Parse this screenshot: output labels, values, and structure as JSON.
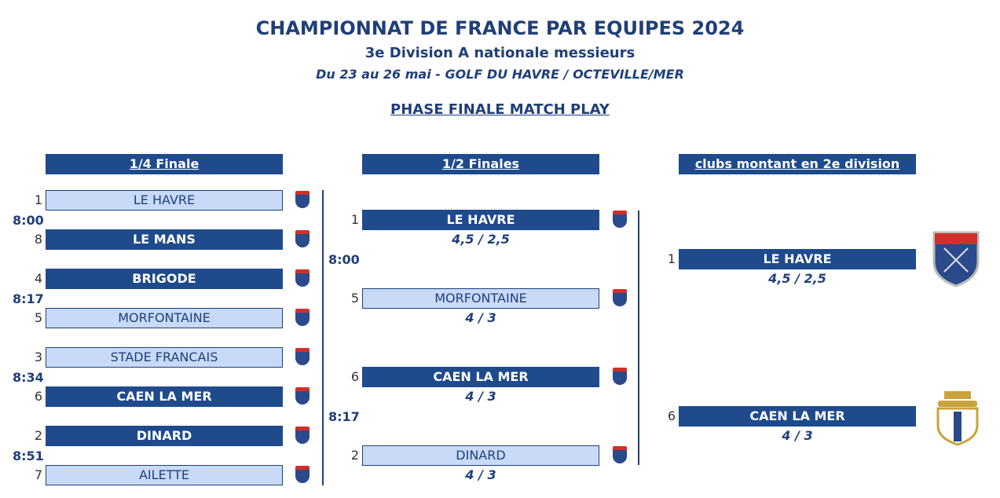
{
  "header": {
    "title": "CHAMPIONNAT DE FRANCE PAR EQUIPES 2024",
    "subtitle": "3e Division A nationale messieurs",
    "dates": "Du 23 au 26 mai - GOLF DU HAVRE / OCTEVILLE/MER",
    "phase": "PHASE FINALE MATCH PLAY"
  },
  "quarter": {
    "heading": "1/4 Finale",
    "matches": [
      {
        "time": "8:00",
        "teams": [
          {
            "seed": "1",
            "name": "LE HAVRE"
          },
          {
            "seed": "8",
            "name": "LE MANS"
          }
        ]
      },
      {
        "time": "8:17",
        "teams": [
          {
            "seed": "4",
            "name": "BRIGODE"
          },
          {
            "seed": "5",
            "name": "MORFONTAINE"
          }
        ]
      },
      {
        "time": "8:34",
        "teams": [
          {
            "seed": "3",
            "name": "STADE FRANCAIS"
          },
          {
            "seed": "6",
            "name": "CAEN LA MER"
          }
        ]
      },
      {
        "time": "8:51",
        "teams": [
          {
            "seed": "2",
            "name": "DINARD"
          },
          {
            "seed": "7",
            "name": "AILETTE"
          }
        ]
      }
    ]
  },
  "semis": {
    "heading": "1/2 Finales",
    "matches": [
      {
        "time": "8:00",
        "teams": [
          {
            "seed": "1",
            "name": "LE HAVRE",
            "score": "4,5 / 2,5"
          },
          {
            "seed": "5",
            "name": "MORFONTAINE",
            "score": "4 / 3"
          }
        ]
      },
      {
        "time": "8:17",
        "teams": [
          {
            "seed": "6",
            "name": "CAEN LA MER",
            "score": "4 / 3"
          },
          {
            "seed": "2",
            "name": "DINARD",
            "score": "4 / 3"
          }
        ]
      }
    ]
  },
  "promoted": {
    "heading": "clubs montant en 2e division",
    "teams": [
      {
        "seed": "1",
        "name": "LE HAVRE",
        "score": "4,5 / 2,5"
      },
      {
        "seed": "6",
        "name": "CAEN LA MER",
        "score": "4 / 3"
      }
    ]
  }
}
